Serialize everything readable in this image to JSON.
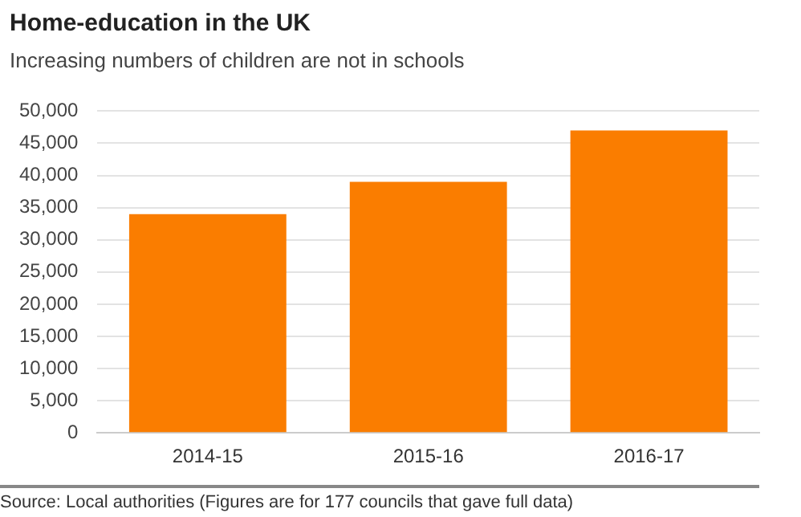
{
  "chart_data": {
    "type": "bar",
    "title": "Home-education in the UK",
    "subtitle": "Increasing numbers of children are not in schools",
    "categories": [
      "2014-15",
      "2015-16",
      "2016-17"
    ],
    "values": [
      34000,
      39000,
      47000
    ],
    "color": "#fa7d00",
    "ylim": [
      0,
      50000
    ],
    "yticks": [
      0,
      {
        "value": 5000,
        "label": "5,000"
      },
      {
        "value": 10000,
        "label": "10,000"
      },
      {
        "value": 15000,
        "label": "15,000"
      },
      {
        "value": 20000,
        "label": "20,000"
      },
      {
        "value": 25000,
        "label": "25,000"
      },
      {
        "value": 30000,
        "label": "30,000"
      },
      {
        "value": 35000,
        "label": "35,000"
      },
      {
        "value": 40000,
        "label": "40,000"
      },
      {
        "value": 45000,
        "label": "45,000"
      },
      {
        "value": 50000,
        "label": "50,000"
      }
    ],
    "grid": "y",
    "annotations": [
      "Source: Local authorities (Figures are for 177 councils that gave full data)"
    ]
  }
}
